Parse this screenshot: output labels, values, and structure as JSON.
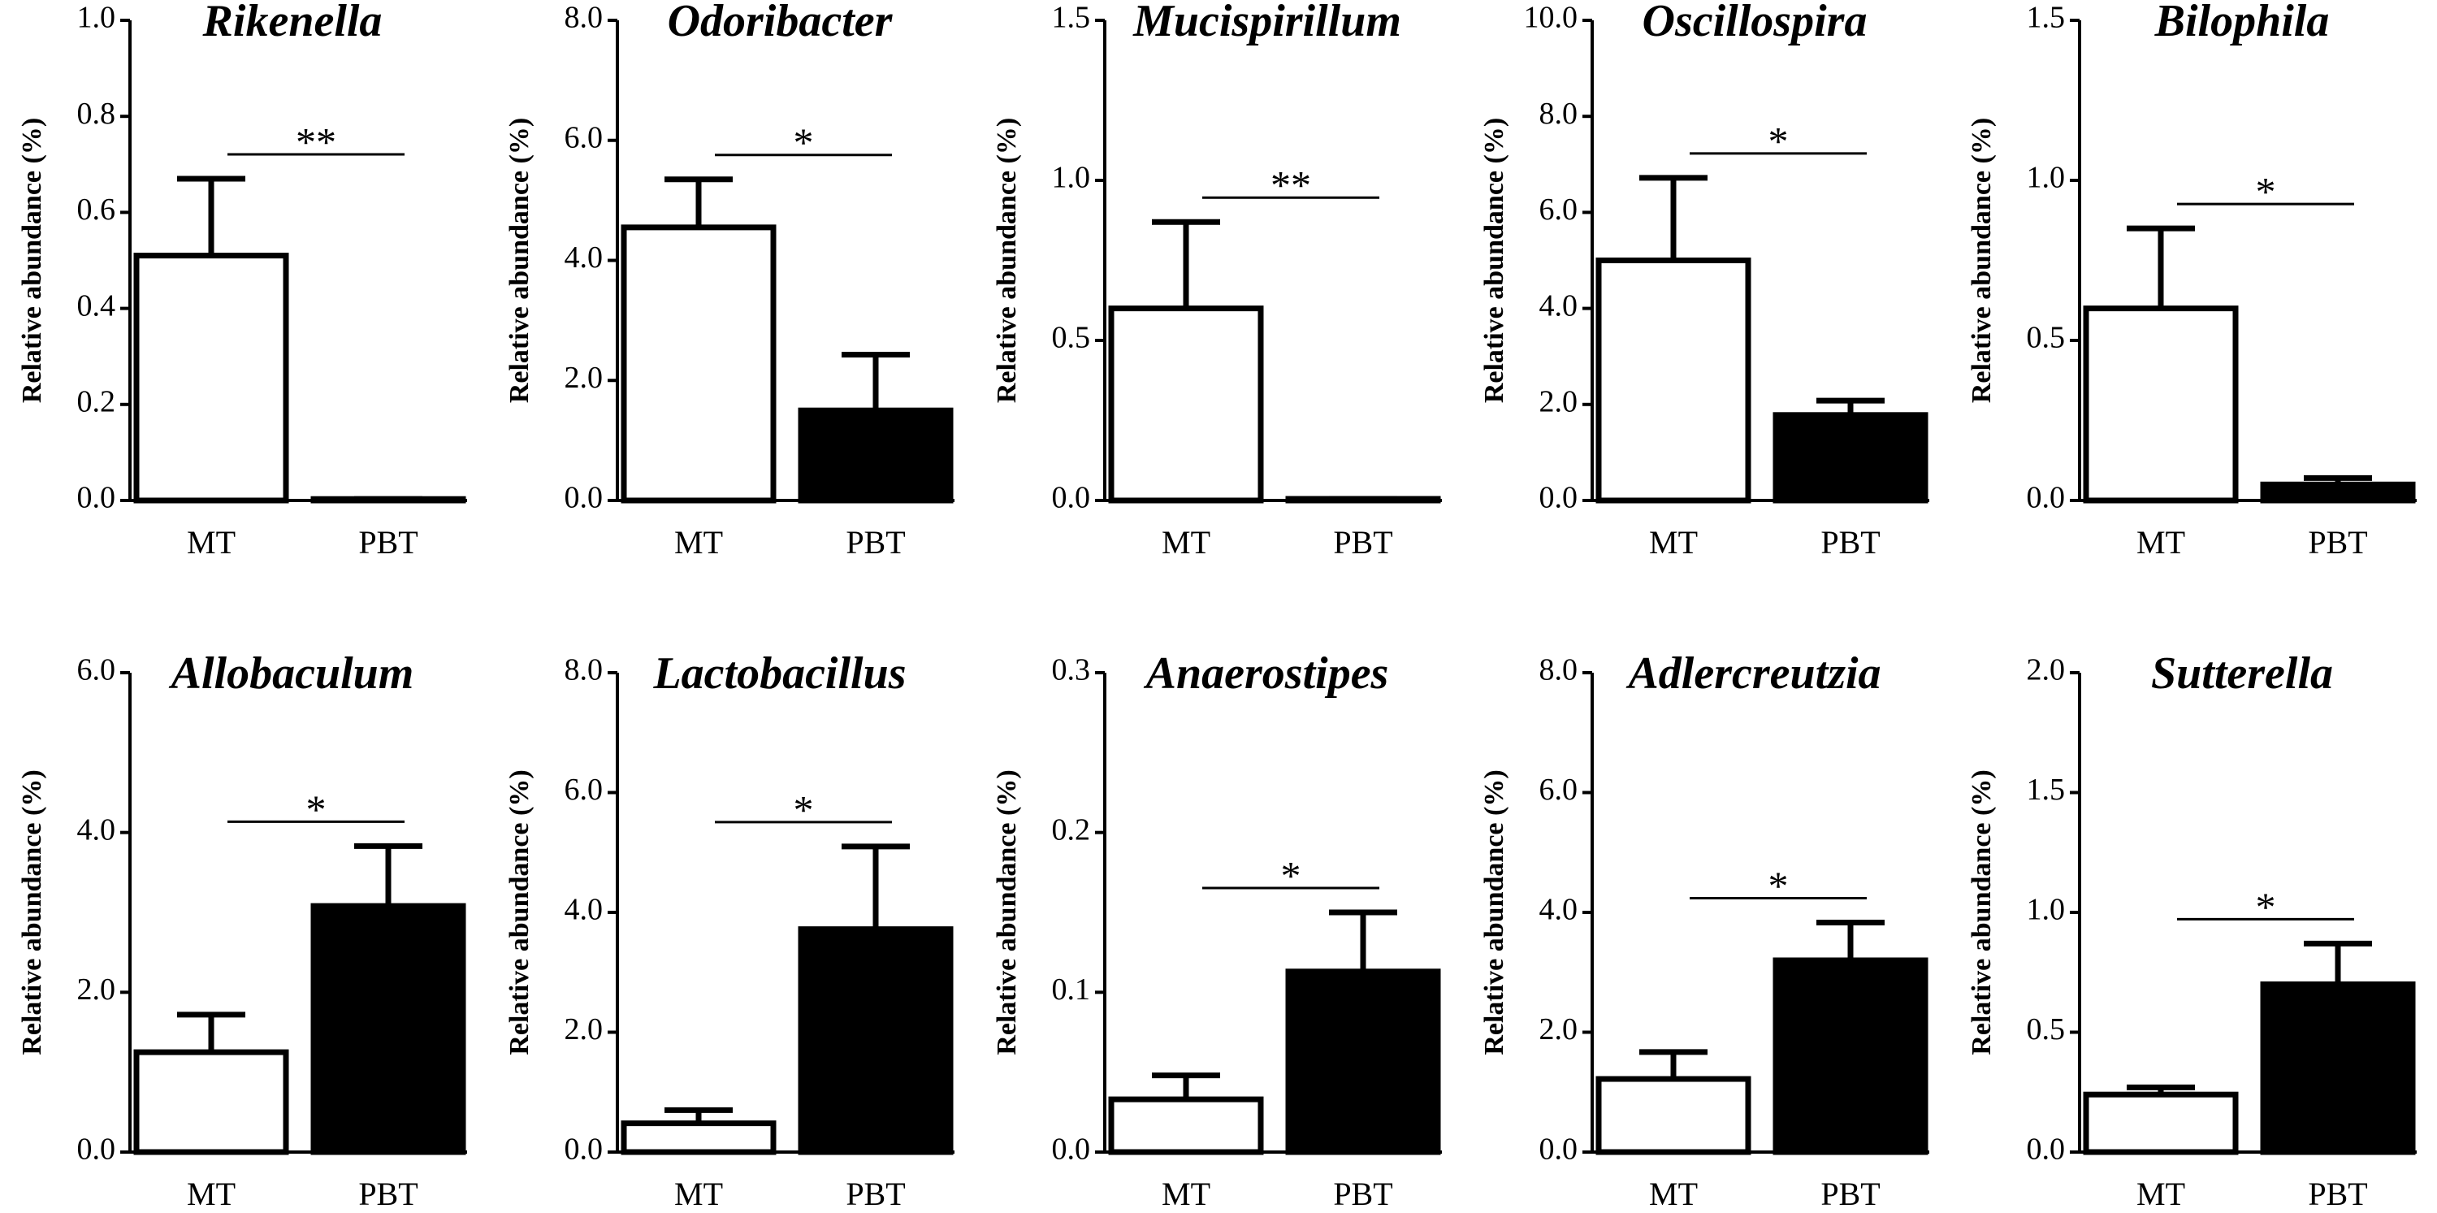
{
  "chart_data": [
    {
      "type": "bar",
      "title": "Rikenella",
      "ylabel": "Relative abundance (%)",
      "categories": [
        "MT",
        "PBT"
      ],
      "values": [
        0.51,
        0.003
      ],
      "errors": [
        0.16,
        0
      ],
      "colors": [
        "#ffffff",
        "#000000"
      ],
      "ylim": [
        0,
        1
      ],
      "yticks": [
        {
          "value": 0,
          "label": "0.0"
        },
        0.2,
        0.4,
        0.6,
        0.8,
        {
          "value": 1,
          "label": "1.0"
        }
      ],
      "annotation": "**"
    },
    {
      "type": "bar",
      "title": "Odoribacter",
      "ylabel": "Relative abundance (%)",
      "categories": [
        "MT",
        "PBT"
      ],
      "values": [
        4.55,
        1.5
      ],
      "errors": [
        0.8,
        0.93
      ],
      "colors": [
        "#ffffff",
        "#000000"
      ],
      "ylim": [
        0,
        8
      ],
      "yticks": [
        {
          "value": 0,
          "label": "0.0"
        },
        {
          "value": 2,
          "label": "2.0"
        },
        {
          "value": 4,
          "label": "4.0"
        },
        {
          "value": 6,
          "label": "6.0"
        },
        {
          "value": 8,
          "label": "8.0"
        }
      ],
      "annotation": "*"
    },
    {
      "type": "bar",
      "title": "Mucispirillum",
      "ylabel": "Relative abundance (%)",
      "categories": [
        "MT",
        "PBT"
      ],
      "values": [
        0.6,
        0.005
      ],
      "errors": [
        0.27,
        0
      ],
      "colors": [
        "#ffffff",
        "#000000"
      ],
      "ylim": [
        0,
        1.5
      ],
      "yticks": [
        {
          "value": 0,
          "label": "0.0"
        },
        0.5,
        {
          "value": 1,
          "label": "1.0"
        },
        1.5
      ],
      "annotation": "**"
    },
    {
      "type": "bar",
      "title": "Oscillospira",
      "ylabel": "Relative abundance (%)",
      "categories": [
        "MT",
        "PBT"
      ],
      "values": [
        5.0,
        1.78
      ],
      "errors": [
        1.72,
        0.3
      ],
      "colors": [
        "#ffffff",
        "#000000"
      ],
      "ylim": [
        0,
        10
      ],
      "yticks": [
        {
          "value": 0,
          "label": "0.0"
        },
        {
          "value": 2,
          "label": "2.0"
        },
        {
          "value": 4,
          "label": "4.0"
        },
        {
          "value": 6,
          "label": "6.0"
        },
        {
          "value": 8,
          "label": "8.0"
        },
        {
          "value": 10,
          "label": "10.0"
        }
      ],
      "annotation": "*"
    },
    {
      "type": "bar",
      "title": "Bilophila",
      "ylabel": "Relative abundance (%)",
      "categories": [
        "MT",
        "PBT"
      ],
      "values": [
        0.6,
        0.05
      ],
      "errors": [
        0.25,
        0.02
      ],
      "colors": [
        "#ffffff",
        "#000000"
      ],
      "ylim": [
        0,
        1.5
      ],
      "yticks": [
        {
          "value": 0,
          "label": "0.0"
        },
        0.5,
        {
          "value": 1,
          "label": "1.0"
        },
        1.5
      ],
      "annotation": "*"
    },
    {
      "type": "bar",
      "title": "Allobaculum",
      "ylabel": "Relative abundance (%)",
      "categories": [
        "MT",
        "PBT"
      ],
      "values": [
        1.25,
        3.08
      ],
      "errors": [
        0.47,
        0.75
      ],
      "colors": [
        "#ffffff",
        "#000000"
      ],
      "ylim": [
        0,
        6
      ],
      "yticks": [
        {
          "value": 0,
          "label": "0.0"
        },
        {
          "value": 2,
          "label": "2.0"
        },
        {
          "value": 4,
          "label": "4.0"
        },
        {
          "value": 6,
          "label": "6.0"
        }
      ],
      "annotation": "*"
    },
    {
      "type": "bar",
      "title": "Lactobacillus",
      "ylabel": "Relative abundance (%)",
      "categories": [
        "MT",
        "PBT"
      ],
      "values": [
        0.48,
        3.72
      ],
      "errors": [
        0.22,
        1.38
      ],
      "colors": [
        "#ffffff",
        "#000000"
      ],
      "ylim": [
        0,
        8
      ],
      "yticks": [
        {
          "value": 0,
          "label": "0.0"
        },
        {
          "value": 2,
          "label": "2.0"
        },
        {
          "value": 4,
          "label": "4.0"
        },
        {
          "value": 6,
          "label": "6.0"
        },
        {
          "value": 8,
          "label": "8.0"
        }
      ],
      "annotation": "*"
    },
    {
      "type": "bar",
      "title": "Anaerostipes",
      "ylabel": "Relative abundance (%)",
      "categories": [
        "MT",
        "PBT"
      ],
      "values": [
        0.033,
        0.113
      ],
      "errors": [
        0.015,
        0.037
      ],
      "colors": [
        "#ffffff",
        "#000000"
      ],
      "ylim": [
        0,
        0.3
      ],
      "yticks": [
        {
          "value": 0,
          "label": "0.0"
        },
        0.1,
        0.2,
        0.3
      ],
      "annotation": "*"
    },
    {
      "type": "bar",
      "title": "Adlercreutzia",
      "ylabel": "Relative abundance (%)",
      "categories": [
        "MT",
        "PBT"
      ],
      "values": [
        1.22,
        3.2
      ],
      "errors": [
        0.45,
        0.63
      ],
      "colors": [
        "#ffffff",
        "#000000"
      ],
      "ylim": [
        0,
        8
      ],
      "yticks": [
        {
          "value": 0,
          "label": "0.0"
        },
        {
          "value": 2,
          "label": "2.0"
        },
        {
          "value": 4,
          "label": "4.0"
        },
        {
          "value": 6,
          "label": "6.0"
        },
        {
          "value": 8,
          "label": "8.0"
        }
      ],
      "annotation": "*"
    },
    {
      "type": "bar",
      "title": "Sutterella",
      "ylabel": "Relative abundance (%)",
      "categories": [
        "MT",
        "PBT"
      ],
      "values": [
        0.24,
        0.7
      ],
      "errors": [
        0.03,
        0.17
      ],
      "colors": [
        "#ffffff",
        "#000000"
      ],
      "ylim": [
        0,
        2
      ],
      "yticks": [
        {
          "value": 0,
          "label": "0.0"
        },
        0.5,
        {
          "value": 1,
          "label": "1.0"
        },
        1.5,
        {
          "value": 2,
          "label": "2.0"
        }
      ],
      "annotation": "*"
    }
  ]
}
